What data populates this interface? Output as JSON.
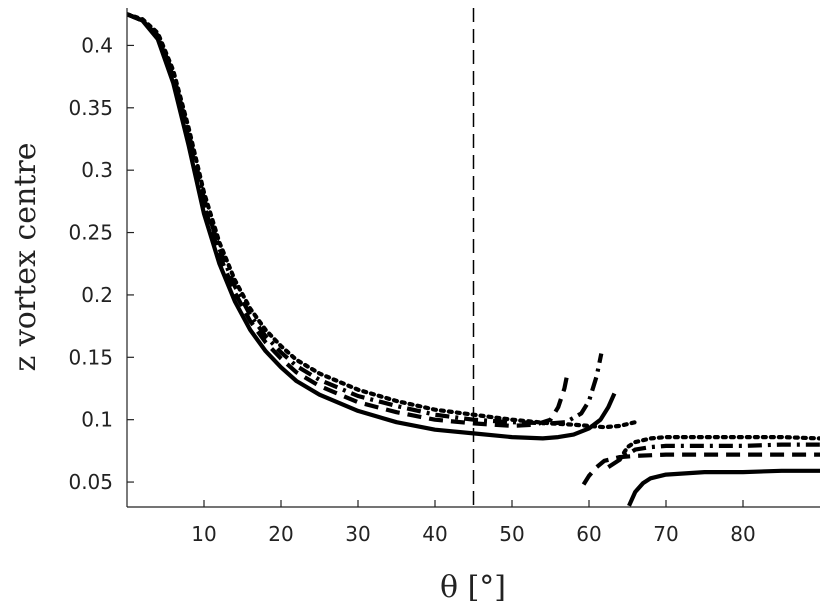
{
  "chart_data": {
    "type": "line",
    "xlabel": "θ [°]",
    "ylabel": "z vortex centre",
    "xlim": [
      0,
      90
    ],
    "ylim": [
      0.03,
      0.43
    ],
    "x_ticks": [
      10,
      20,
      30,
      40,
      50,
      60,
      70,
      80
    ],
    "y_ticks": [
      0.05,
      0.1,
      0.15,
      0.2,
      0.25,
      0.3,
      0.35,
      0.4
    ],
    "y_tick_labels": [
      "0.05",
      "0.1",
      "0.15",
      "0.2",
      "0.25",
      "0.3",
      "0.35",
      "0.4"
    ],
    "grid": false,
    "vertical_reference_line": 45,
    "colors": {
      "line": "#000000",
      "axis": "#222222",
      "background": "#ffffff"
    },
    "series": [
      {
        "style": "solid",
        "segments": [
          [
            [
              0,
              0.425
            ],
            [
              2,
              0.42
            ],
            [
              4,
              0.405
            ],
            [
              6,
              0.37
            ],
            [
              8,
              0.32
            ],
            [
              10,
              0.265
            ],
            [
              12,
              0.225
            ],
            [
              14,
              0.195
            ],
            [
              16,
              0.172
            ],
            [
              18,
              0.155
            ],
            [
              20,
              0.142
            ],
            [
              22,
              0.131
            ],
            [
              25,
              0.12
            ],
            [
              30,
              0.107
            ],
            [
              35,
              0.098
            ],
            [
              40,
              0.092
            ],
            [
              45,
              0.089
            ],
            [
              50,
              0.086
            ],
            [
              54,
              0.085
            ],
            [
              56,
              0.086
            ],
            [
              58,
              0.088
            ],
            [
              60,
              0.093
            ],
            [
              61.5,
              0.1
            ],
            [
              62.5,
              0.11
            ],
            [
              63.3,
              0.121
            ]
          ],
          [
            [
              65.2,
              0.031
            ],
            [
              66,
              0.042
            ],
            [
              67,
              0.049
            ],
            [
              68,
              0.053
            ],
            [
              70,
              0.056
            ],
            [
              75,
              0.058
            ],
            [
              80,
              0.058
            ],
            [
              85,
              0.059
            ],
            [
              90,
              0.059
            ]
          ]
        ]
      },
      {
        "style": "dashed",
        "segments": [
          [
            [
              0,
              0.425
            ],
            [
              2,
              0.42
            ],
            [
              4,
              0.407
            ],
            [
              6,
              0.375
            ],
            [
              8,
              0.326
            ],
            [
              10,
              0.272
            ],
            [
              12,
              0.232
            ],
            [
              14,
              0.202
            ],
            [
              16,
              0.179
            ],
            [
              18,
              0.162
            ],
            [
              20,
              0.149
            ],
            [
              22,
              0.138
            ],
            [
              25,
              0.127
            ],
            [
              30,
              0.114
            ],
            [
              35,
              0.106
            ],
            [
              40,
              0.1
            ],
            [
              45,
              0.097
            ],
            [
              50,
              0.095
            ],
            [
              53,
              0.096
            ],
            [
              55,
              0.1
            ],
            [
              56,
              0.11
            ],
            [
              56.8,
              0.125
            ],
            [
              57.3,
              0.14
            ]
          ],
          [
            [
              59.3,
              0.048
            ],
            [
              60,
              0.055
            ],
            [
              61,
              0.062
            ],
            [
              62,
              0.067
            ],
            [
              64,
              0.07
            ],
            [
              66,
              0.071
            ],
            [
              70,
              0.072
            ],
            [
              75,
              0.072
            ],
            [
              80,
              0.072
            ],
            [
              85,
              0.072
            ],
            [
              90,
              0.072
            ]
          ]
        ]
      },
      {
        "style": "dashdot",
        "segments": [
          [
            [
              0,
              0.425
            ],
            [
              2,
              0.42
            ],
            [
              4,
              0.408
            ],
            [
              6,
              0.377
            ],
            [
              8,
              0.33
            ],
            [
              10,
              0.277
            ],
            [
              12,
              0.237
            ],
            [
              14,
              0.207
            ],
            [
              16,
              0.184
            ],
            [
              18,
              0.167
            ],
            [
              20,
              0.154
            ],
            [
              22,
              0.143
            ],
            [
              25,
              0.132
            ],
            [
              30,
              0.119
            ],
            [
              35,
              0.111
            ],
            [
              40,
              0.104
            ],
            [
              45,
              0.1
            ],
            [
              50,
              0.098
            ],
            [
              55,
              0.097
            ],
            [
              57,
              0.098
            ],
            [
              59,
              0.105
            ],
            [
              60,
              0.115
            ],
            [
              61,
              0.135
            ],
            [
              61.6,
              0.153
            ]
          ],
          [
            [
              62.5,
              0.062
            ],
            [
              63.5,
              0.066
            ],
            [
              65,
              0.072
            ],
            [
              66,
              0.076
            ],
            [
              68,
              0.078
            ],
            [
              70,
              0.079
            ],
            [
              75,
              0.079
            ],
            [
              80,
              0.079
            ],
            [
              85,
              0.08
            ],
            [
              90,
              0.08
            ]
          ]
        ]
      },
      {
        "style": "dotted",
        "segments": [
          [
            [
              0,
              0.425
            ],
            [
              2,
              0.421
            ],
            [
              4,
              0.41
            ],
            [
              6,
              0.38
            ],
            [
              8,
              0.334
            ],
            [
              10,
              0.282
            ],
            [
              12,
              0.242
            ],
            [
              14,
              0.212
            ],
            [
              16,
              0.189
            ],
            [
              18,
              0.172
            ],
            [
              20,
              0.159
            ],
            [
              22,
              0.148
            ],
            [
              25,
              0.137
            ],
            [
              30,
              0.124
            ],
            [
              35,
              0.115
            ],
            [
              40,
              0.108
            ],
            [
              45,
              0.104
            ],
            [
              50,
              0.1
            ],
            [
              55,
              0.097
            ],
            [
              58,
              0.096
            ],
            [
              60,
              0.095
            ],
            [
              62,
              0.094
            ],
            [
              64,
              0.095
            ],
            [
              66,
              0.098
            ]
          ],
          [
            [
              64,
              0.068
            ],
            [
              65,
              0.078
            ],
            [
              66,
              0.082
            ],
            [
              68,
              0.085
            ],
            [
              70,
              0.086
            ],
            [
              75,
              0.086
            ],
            [
              80,
              0.086
            ],
            [
              85,
              0.086
            ],
            [
              90,
              0.085
            ]
          ]
        ]
      }
    ]
  }
}
